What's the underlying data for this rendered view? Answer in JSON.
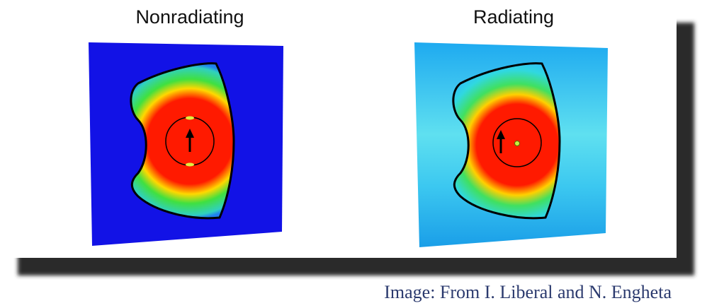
{
  "panels": [
    {
      "title": "Nonradiating"
    },
    {
      "title": "Radiating"
    }
  ],
  "caption": "Image: From I. Liberal and N. Engheta"
}
